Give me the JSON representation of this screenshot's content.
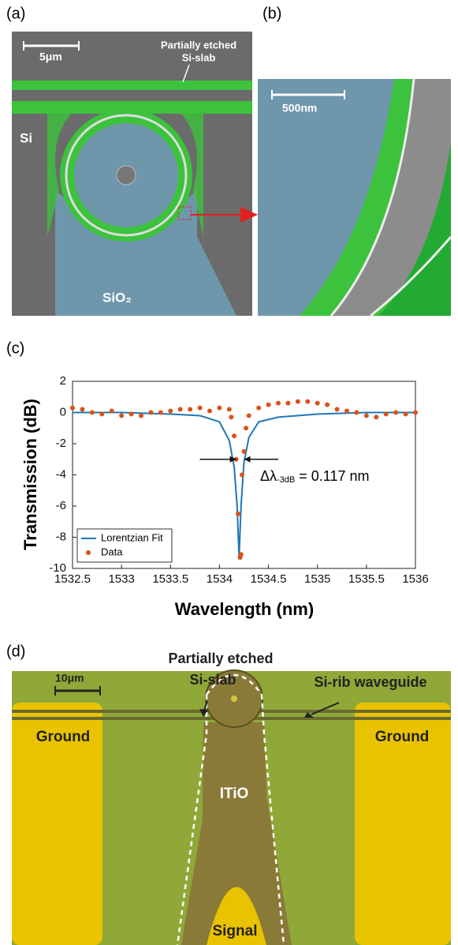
{
  "panel_labels": [
    "(a)",
    "(b)",
    "(c)",
    "(d)"
  ],
  "panel_a": {
    "scale": "5μm",
    "slab_line1": "Partially etched",
    "slab_line2": "Si-slab",
    "si": "Si",
    "sio2": "SiO₂"
  },
  "panel_b": {
    "scale": "500nm"
  },
  "chart_data": {
    "type": "line",
    "ylabel": "Transmission (dB)",
    "xlabel": "Wavelength (nm)",
    "xlim": [
      1532.5,
      1536
    ],
    "ylim": [
      -10,
      2
    ],
    "xticks": [
      1532.5,
      1533,
      1533.5,
      1534,
      1534.5,
      1535,
      1535.5,
      1536
    ],
    "yticks": [
      2,
      0,
      -2,
      -4,
      -6,
      -8,
      -10
    ],
    "legend": "lower-left",
    "annotation": {
      "main": "Δλ",
      "sub": "-3dB",
      "rest": " = 0.117 nm",
      "level": -3,
      "left_from": 1533.8,
      "left_to": 1534.17,
      "right_from": 1534.6,
      "right_to": 1534.25
    },
    "series": [
      {
        "name": "Lorentzian Fit",
        "color": "#1f77b4",
        "kind": "line",
        "x": [
          1532.5,
          1533,
          1533.5,
          1533.8,
          1534,
          1534.1,
          1534.15,
          1534.18,
          1534.2,
          1534.22,
          1534.25,
          1534.3,
          1534.4,
          1534.6,
          1535,
          1535.5,
          1536
        ],
        "values": [
          0,
          0,
          -0.1,
          -0.2,
          -0.6,
          -1.8,
          -3.5,
          -6,
          -9.3,
          -6,
          -3.2,
          -1.6,
          -0.6,
          -0.3,
          -0.1,
          0,
          0
        ]
      },
      {
        "name": "Data",
        "color": "#d95319",
        "kind": "scatter",
        "x": [
          1532.5,
          1532.6,
          1532.7,
          1532.8,
          1532.9,
          1533,
          1533.1,
          1533.2,
          1533.3,
          1533.4,
          1533.5,
          1533.6,
          1533.7,
          1533.8,
          1533.9,
          1534,
          1534.1,
          1534.12,
          1534.15,
          1534.17,
          1534.19,
          1534.21,
          1534.22,
          1534.23,
          1534.25,
          1534.27,
          1534.3,
          1534.4,
          1534.5,
          1534.6,
          1534.7,
          1534.8,
          1534.9,
          1535,
          1535.1,
          1535.2,
          1535.3,
          1535.4,
          1535.5,
          1535.6,
          1535.7,
          1535.8,
          1535.9,
          1536
        ],
        "values": [
          0.3,
          0.2,
          0,
          -0.1,
          0.1,
          -0.2,
          -0.1,
          -0.2,
          0,
          0,
          0.1,
          0.2,
          0.2,
          0.3,
          0.1,
          0.3,
          0.2,
          -0.3,
          -1.5,
          -3,
          -6.5,
          -9.3,
          -9.1,
          -4,
          -2.5,
          -1,
          -0.2,
          0.3,
          0.5,
          0.6,
          0.6,
          0.7,
          0.7,
          0.6,
          0.5,
          0.2,
          0.1,
          0,
          -0.2,
          -0.3,
          -0.1,
          0,
          -0.1,
          0
        ]
      }
    ]
  },
  "panel_d": {
    "scale": "10μm",
    "slab_line1": "Partially etched",
    "slab_line2": "Si-slab",
    "rib": "Si-rib waveguide",
    "ground_left": "Ground",
    "ground_right": "Ground",
    "itio": "ITiO",
    "signal": "Signal"
  }
}
